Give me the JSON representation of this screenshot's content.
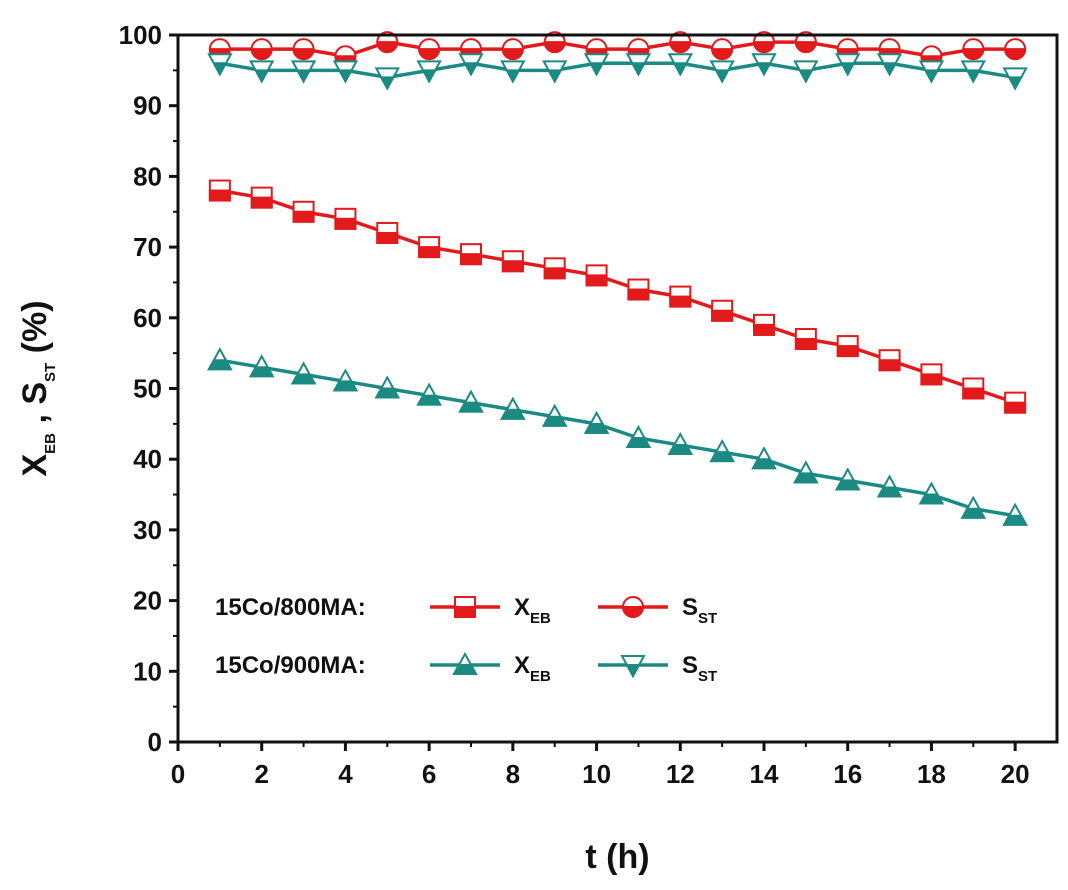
{
  "chart_data": {
    "type": "line",
    "title": "",
    "xlabel": "t (h)",
    "ylabel": {
      "main": "X",
      "sub1": "EB",
      "sep": " , S",
      "sub2": "ST",
      "unit": " (%)"
    },
    "xlim": [
      0,
      21
    ],
    "ylim": [
      0,
      100
    ],
    "xticks": [
      0,
      2,
      4,
      6,
      8,
      10,
      12,
      14,
      16,
      18,
      20
    ],
    "yticks": [
      0,
      10,
      20,
      30,
      40,
      50,
      60,
      70,
      80,
      90,
      100
    ],
    "x": [
      1,
      2,
      3,
      4,
      5,
      6,
      7,
      8,
      9,
      10,
      11,
      12,
      13,
      14,
      15,
      16,
      17,
      18,
      19,
      20
    ],
    "series": [
      {
        "name": "15Co/800MA X_EB",
        "catalyst": "15Co/800MA:",
        "metric": "X",
        "metric_sub": "EB",
        "marker": "square",
        "color": "#e31a1c",
        "values": [
          78,
          77,
          75,
          74,
          72,
          70,
          69,
          68,
          67,
          66,
          64,
          63,
          61,
          59,
          57,
          56,
          54,
          52,
          50,
          48
        ]
      },
      {
        "name": "15Co/800MA S_ST",
        "catalyst": "15Co/800MA:",
        "metric": "S",
        "metric_sub": "ST",
        "marker": "circle",
        "color": "#e31a1c",
        "values": [
          98,
          98,
          98,
          97,
          99,
          98,
          98,
          98,
          99,
          98,
          98,
          99,
          98,
          99,
          99,
          98,
          98,
          97,
          98,
          98
        ]
      },
      {
        "name": "15Co/900MA X_EB",
        "catalyst": "15Co/900MA:",
        "metric": "X",
        "metric_sub": "EB",
        "marker": "triangle-up",
        "color": "#1a8a82",
        "values": [
          54,
          53,
          52,
          51,
          50,
          49,
          48,
          47,
          46,
          45,
          43,
          42,
          41,
          40,
          38,
          37,
          36,
          35,
          33,
          32
        ]
      },
      {
        "name": "15Co/900MA S_ST",
        "catalyst": "15Co/900MA:",
        "metric": "S",
        "metric_sub": "ST",
        "marker": "triangle-down",
        "color": "#1a8a82",
        "values": [
          96,
          95,
          95,
          95,
          94,
          95,
          96,
          95,
          95,
          96,
          96,
          96,
          95,
          96,
          95,
          96,
          96,
          95,
          95,
          94
        ]
      }
    ],
    "legend": {
      "position": "lower-left",
      "rows": [
        {
          "label": "15Co/800MA:",
          "items": [
            {
              "main": "X",
              "sub": "EB",
              "series": 0
            },
            {
              "main": "S",
              "sub": "ST",
              "series": 1
            }
          ]
        },
        {
          "label": "15Co/900MA:",
          "items": [
            {
              "main": "X",
              "sub": "EB",
              "series": 2
            },
            {
              "main": "S",
              "sub": "ST",
              "series": 3
            }
          ]
        }
      ]
    }
  }
}
